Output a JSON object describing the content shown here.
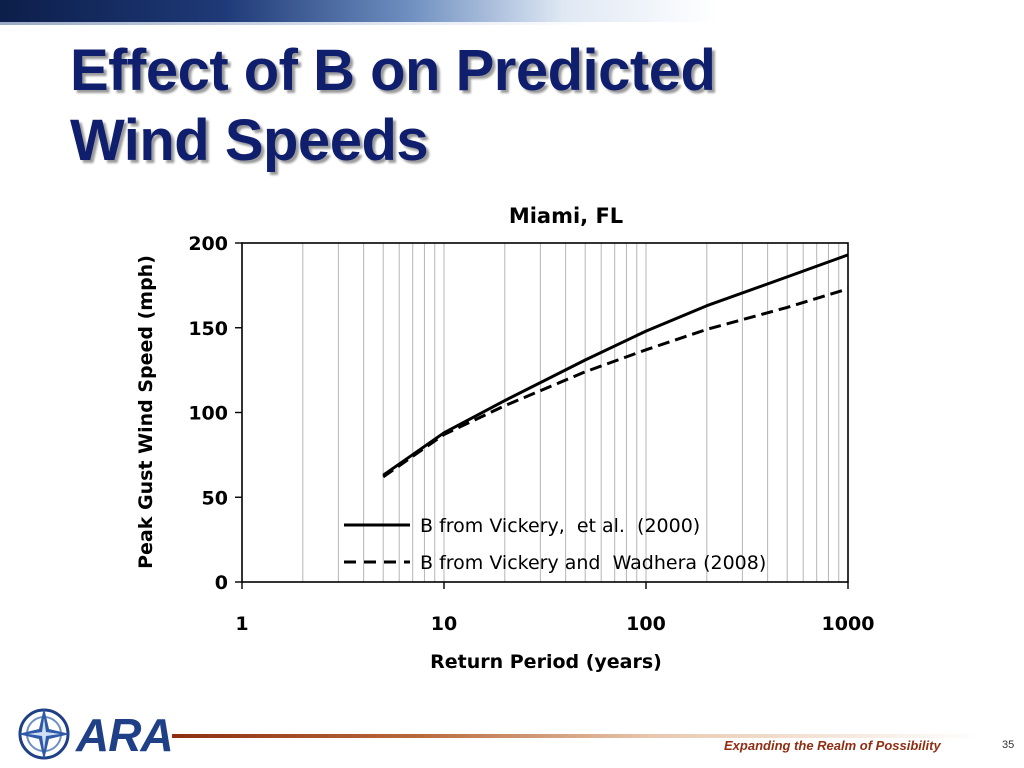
{
  "slide": {
    "title_line1": "Effect of B on Predicted",
    "title_line2": "Wind Speeds",
    "logo_text": "ARA",
    "tagline": "Expanding the Realm of Possibility",
    "page_number": "35",
    "colors": {
      "title": "#0f1f6e",
      "footer_accent": "#8f2e12",
      "logo": "#1f3f86"
    }
  },
  "chart_data": {
    "type": "line",
    "title": "Miami, FL",
    "xlabel": "Return Period (years)",
    "ylabel": "Peak Gust Wind Speed (mph)",
    "xscale": "log",
    "xlim": [
      1,
      1000
    ],
    "ylim": [
      0,
      200
    ],
    "x_ticks": [
      "1",
      "10",
      "100",
      "1000"
    ],
    "y_ticks": [
      "0",
      "50",
      "100",
      "150",
      "200"
    ],
    "grid": "vertical minor log gridlines",
    "legend_position": "bottom-center",
    "x": [
      5,
      10,
      20,
      50,
      100,
      200,
      500,
      1000
    ],
    "series": [
      {
        "name": "B from Vickery,  et al.  (2000)",
        "style": "solid",
        "color": "#000000",
        "values": [
          63,
          88,
          107,
          131,
          148,
          163,
          180,
          193
        ]
      },
      {
        "name": "B from Vickery and  Wadhera (2008)",
        "style": "dashed",
        "color": "#000000",
        "values": [
          62,
          87,
          104,
          124,
          137,
          149,
          162,
          173
        ]
      }
    ]
  }
}
